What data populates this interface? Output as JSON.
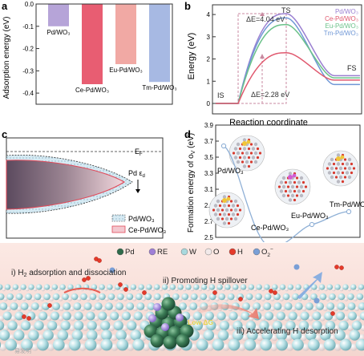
{
  "panels": {
    "a": {
      "letter": "a",
      "ylabel": "Adsorption energy (eV)",
      "y_ticks": [
        "0.0",
        "-0.1",
        "-0.2",
        "-0.3",
        "-0.4"
      ],
      "bars": [
        {
          "label": "Pd/WO₃",
          "value": -0.1,
          "color": "#b6a4d8"
        },
        {
          "label": "Ce-Pd/WO₃",
          "value": -0.36,
          "color": "#e85d72"
        },
        {
          "label": "Eu-Pd/WO₃",
          "value": -0.27,
          "color": "#f1a9a4"
        },
        {
          "label": "Tm-Pd/WO₃",
          "value": -0.35,
          "color": "#a7b9e3"
        }
      ]
    },
    "b": {
      "letter": "b",
      "ylabel": "Energy (eV)",
      "xlabel": "Reaction coordinate",
      "y_ticks": [
        "0",
        "1",
        "2",
        "3",
        "4"
      ],
      "IS": "IS",
      "TS": "TS",
      "FS": "FS",
      "dE1": "ΔE=4.04 eV",
      "dE2": "ΔE=2.28 eV",
      "legend": [
        {
          "label": "Pd/WO₃",
          "color": "#9a7fd1"
        },
        {
          "label": "Ce-Pd/WO₃",
          "color": "#e0586e"
        },
        {
          "label": "Eu-Pd/WO₃",
          "color": "#6cc28a"
        },
        {
          "label": "Tm-Pd/WO₃",
          "color": "#6f97d6"
        }
      ]
    },
    "c": {
      "letter": "c",
      "ef": "E",
      "ef_sub": "F",
      "pd_label": "Pd ε",
      "pd_sub": "d",
      "legend": [
        {
          "label": "Pd/WO₃"
        },
        {
          "label": "Ce-Pd/WO₃"
        }
      ]
    },
    "d": {
      "letter": "d",
      "ylabel": "Formation energy of o",
      "ylabel_sub": "V",
      "ylabel_end": " (eV)",
      "y_ticks": [
        "2.5",
        "2.7",
        "2.9",
        "3.1",
        "3.3",
        "3.5",
        "3.7",
        "3.9"
      ],
      "points": [
        {
          "label": "Pd/WO₃",
          "value": 3.64
        },
        {
          "label": "Ce-Pd/WO₃",
          "value": 2.38
        },
        {
          "label": "Eu-Pd/WO₃",
          "value": 2.66
        },
        {
          "label": "Tm-Pd/WO₃",
          "value": 2.82
        }
      ]
    },
    "e": {
      "letter": "e",
      "legend": [
        {
          "label": "Pd",
          "color": "#2f6a4a"
        },
        {
          "label": "RE",
          "color": "#9f7fd6"
        },
        {
          "label": "W",
          "color": "#a9d9de"
        },
        {
          "label": "O",
          "color": "#f2eaea"
        },
        {
          "label": "H",
          "color": "#e53a2a"
        },
        {
          "label": "O",
          "sub": "2",
          "sup": "−",
          "color": "#7a9fd6"
        }
      ],
      "step1": "i) H",
      "step1_sub": "2",
      "step1_end": " adsorption and dissociation",
      "step2": "ii) Promoting H spillover",
      "step3": "iii) Accelerating H desorption",
      "low_ads": "Low ΔG",
      "watermark": "易发明"
    }
  }
}
